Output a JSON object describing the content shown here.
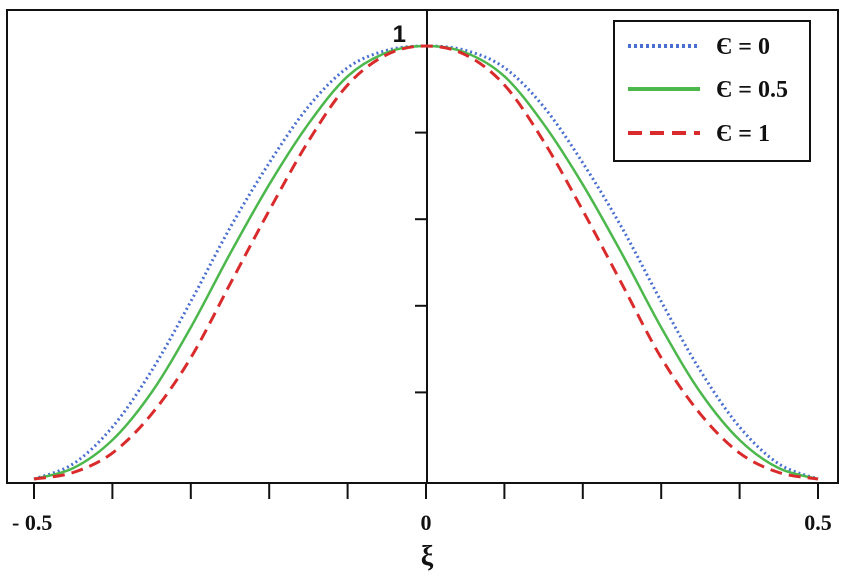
{
  "chart_data": {
    "type": "line",
    "xlabel": "ξ",
    "ylabel": "",
    "xlim": [
      -0.5,
      0.5
    ],
    "ylim": [
      0,
      1
    ],
    "x_tick_labels": [
      {
        "value": -0.5,
        "label": "- 0.5"
      },
      {
        "value": 0,
        "label": "0"
      },
      {
        "value": 0.5,
        "label": "0.5"
      }
    ],
    "y_tick_labels": [
      {
        "value": 1,
        "label": "1"
      }
    ],
    "x_minor_ticks": [
      -0.4,
      -0.3,
      -0.2,
      -0.1,
      0.1,
      0.2,
      0.3,
      0.4
    ],
    "y_minor_ticks": [
      0.2,
      0.4,
      0.6,
      0.8
    ],
    "legend_position": "top-right",
    "x": [
      -0.5,
      -0.45,
      -0.4,
      -0.35,
      -0.3,
      -0.25,
      -0.2,
      -0.15,
      -0.1,
      -0.05,
      0,
      0.05,
      0.1,
      0.15,
      0.2,
      0.25,
      0.3,
      0.35,
      0.4,
      0.45,
      0.5
    ],
    "series": [
      {
        "name": "Є = 0",
        "color": "#4a6fd1",
        "style": "dotted",
        "values": [
          0,
          0.035,
          0.12,
          0.25,
          0.41,
          0.58,
          0.73,
          0.86,
          0.95,
          0.99,
          1,
          0.99,
          0.95,
          0.86,
          0.73,
          0.58,
          0.41,
          0.25,
          0.12,
          0.035,
          0
        ]
      },
      {
        "name": "Є = 0.5",
        "color": "#4cb84c",
        "style": "solid",
        "values": [
          0,
          0.025,
          0.09,
          0.2,
          0.35,
          0.52,
          0.68,
          0.82,
          0.93,
          0.985,
          1,
          0.985,
          0.93,
          0.82,
          0.68,
          0.52,
          0.35,
          0.2,
          0.09,
          0.025,
          0
        ]
      },
      {
        "name": "Є = 1",
        "color": "#d92b2b",
        "style": "dashed",
        "values": [
          0,
          0.015,
          0.06,
          0.15,
          0.28,
          0.45,
          0.62,
          0.78,
          0.91,
          0.98,
          1,
          0.98,
          0.91,
          0.78,
          0.62,
          0.45,
          0.28,
          0.15,
          0.06,
          0.015,
          0
        ]
      }
    ]
  }
}
